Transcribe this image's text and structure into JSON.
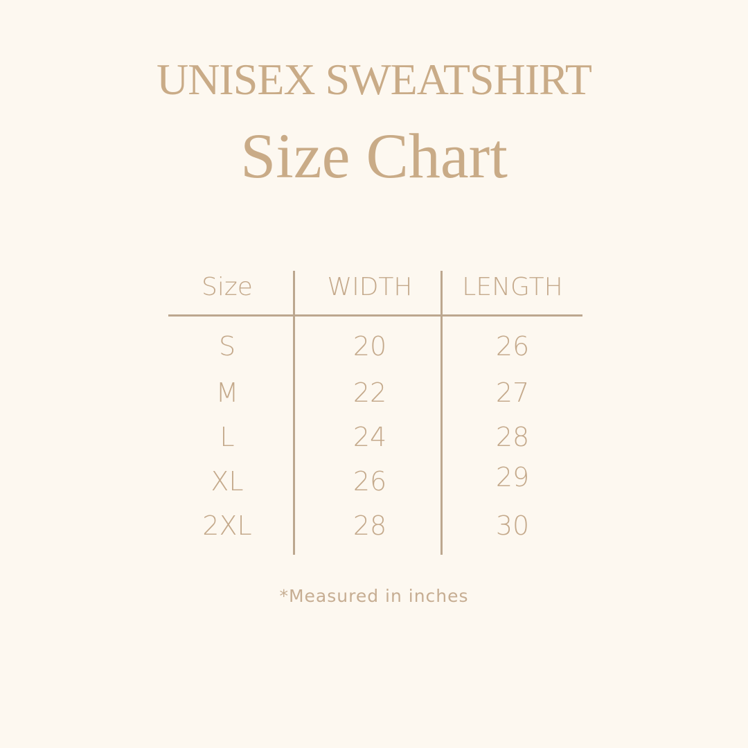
{
  "title": "UNISEX SWEATSHIRT",
  "subtitle": "Size Chart",
  "table": {
    "headers": [
      "Size",
      "WIDTH",
      "LENGTH"
    ],
    "rows": [
      [
        "S",
        "20",
        "26"
      ],
      [
        "M",
        "22",
        "27"
      ],
      [
        "L",
        "24",
        "28"
      ],
      [
        "XL",
        "26",
        "29"
      ],
      [
        "2XL",
        "28",
        "30"
      ]
    ]
  },
  "note": "*Measured in inches",
  "colors": {
    "background": "#fdf8f0",
    "text": "#c4a98b",
    "lines": "#bca78f"
  }
}
